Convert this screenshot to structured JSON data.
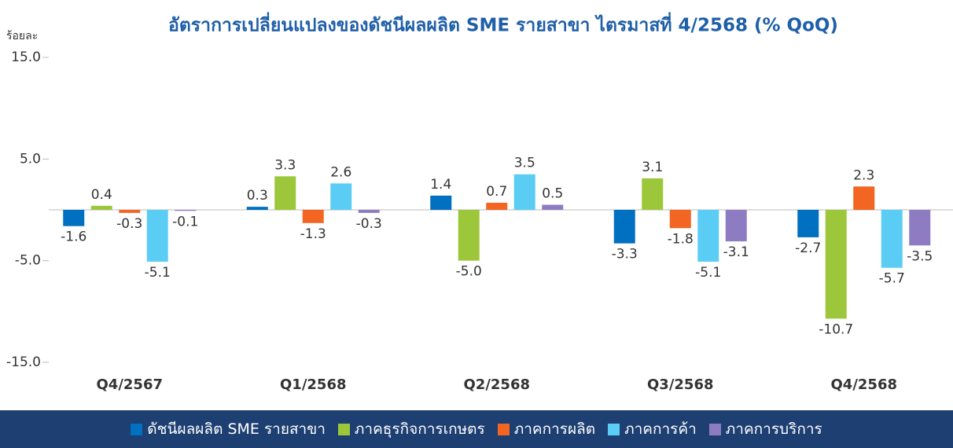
{
  "chart_data": {
    "type": "bar",
    "title": "อัตราการเปลี่ยนแปลงของดัชนีผลผลิต SME รายสาขา ไตรมาสที่ 4/2568 (% QoQ)",
    "y_label": "ร้อยละ",
    "categories": [
      "Q4/2567",
      "Q1/2568",
      "Q2/2568",
      "Q3/2568",
      "Q4/2568"
    ],
    "series": [
      {
        "name": "ดัชนีผลผลิต SME รายสาขา",
        "color": "#0070c0",
        "values": [
          -1.6,
          0.3,
          1.4,
          -3.3,
          -2.7
        ],
        "value_labels": [
          "-1.6",
          "0.3",
          "1.4",
          "-3.3",
          "-2.7"
        ]
      },
      {
        "name": "ภาคธุรกิจการเกษตร",
        "color": "#9dc73a",
        "values": [
          0.4,
          3.3,
          -5.0,
          3.1,
          -10.7
        ],
        "value_labels": [
          "0.4",
          "3.3",
          "-5.0",
          "3.1",
          "-10.7"
        ]
      },
      {
        "name": "ภาคการผลิต",
        "color": "#f26522",
        "values": [
          -0.3,
          -1.3,
          0.7,
          -1.8,
          2.3
        ],
        "value_labels": [
          "-0.3",
          "-1.3",
          "0.7",
          "-1.8",
          "2.3"
        ]
      },
      {
        "name": "ภาคการค้า",
        "color": "#5bcdf5",
        "values": [
          -5.1,
          2.6,
          3.5,
          -5.1,
          -5.7
        ],
        "value_labels": [
          "-5.1",
          "2.6",
          "3.5",
          "-5.1",
          "-5.7"
        ]
      },
      {
        "name": "ภาคการบริการ",
        "color": "#8e7cc3",
        "values": [
          -0.1,
          -0.3,
          0.5,
          -3.1,
          -3.5
        ],
        "value_labels": [
          "-0.1",
          "-0.3",
          "0.5",
          "-3.1",
          "-3.5"
        ]
      }
    ],
    "ylim": [
      -15,
      15
    ],
    "yticks": [
      {
        "value": -15,
        "label": "-15.0"
      },
      {
        "value": -5,
        "label": "-5.0"
      },
      {
        "value": 5,
        "label": "5.0"
      },
      {
        "value": 15,
        "label": "15.0"
      }
    ],
    "legend": "bottom"
  }
}
